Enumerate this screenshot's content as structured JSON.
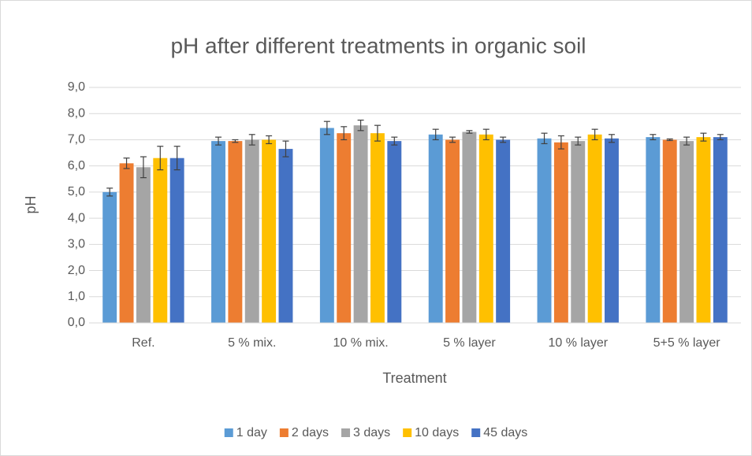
{
  "chart_data": {
    "type": "bar",
    "title": "pH after different treatments in organic soil",
    "x_label": "Treatment",
    "y_label": "pH",
    "categories": [
      "Ref.",
      "5 % mix.",
      "10 % mix.",
      "5 % layer",
      "10 % layer",
      "5+5 % layer"
    ],
    "series": [
      {
        "name": "1 day",
        "color": "#5b9bd5",
        "values": [
          5.0,
          6.95,
          7.45,
          7.2,
          7.05,
          7.1
        ],
        "errors": [
          0.15,
          0.15,
          0.25,
          0.2,
          0.2,
          0.1
        ]
      },
      {
        "name": "2 days",
        "color": "#ed7d31",
        "values": [
          6.1,
          6.95,
          7.25,
          7.0,
          6.9,
          7.0
        ],
        "errors": [
          0.2,
          0.05,
          0.25,
          0.1,
          0.25,
          0.03
        ]
      },
      {
        "name": "3 days",
        "color": "#a5a5a5",
        "values": [
          5.95,
          7.0,
          7.55,
          7.3,
          6.95,
          6.95
        ],
        "errors": [
          0.4,
          0.2,
          0.2,
          0.05,
          0.15,
          0.15
        ]
      },
      {
        "name": "10 days",
        "color": "#ffc000",
        "values": [
          6.3,
          7.0,
          7.25,
          7.2,
          7.2,
          7.1
        ],
        "errors": [
          0.45,
          0.15,
          0.3,
          0.2,
          0.2,
          0.15
        ]
      },
      {
        "name": "45 days",
        "color": "#4472c4",
        "values": [
          6.3,
          6.65,
          6.95,
          7.0,
          7.05,
          7.1
        ],
        "errors": [
          0.45,
          0.3,
          0.15,
          0.1,
          0.15,
          0.1
        ]
      }
    ],
    "ylim": [
      0,
      9
    ],
    "yticks": [
      {
        "value": 0,
        "label": "0,0"
      },
      {
        "value": 1,
        "label": "1,0"
      },
      {
        "value": 2,
        "label": "2,0"
      },
      {
        "value": 3,
        "label": "3,0"
      },
      {
        "value": 4,
        "label": "4,0"
      },
      {
        "value": 5,
        "label": "5,0"
      },
      {
        "value": 6,
        "label": "6,0"
      },
      {
        "value": 7,
        "label": "7,0"
      },
      {
        "value": 8,
        "label": "8,0"
      },
      {
        "value": 9,
        "label": "9,0"
      }
    ],
    "grid": true,
    "legend": "bottom"
  }
}
